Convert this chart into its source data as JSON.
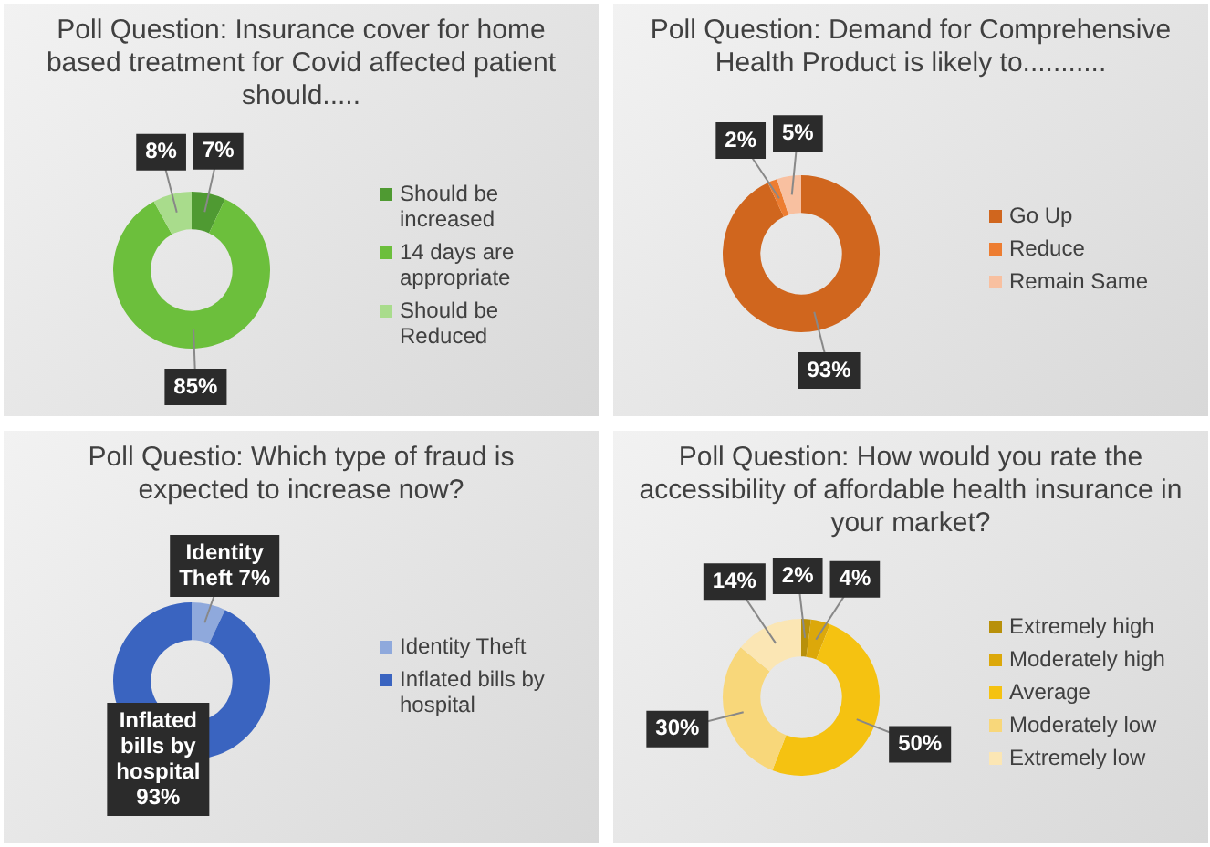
{
  "chart_data": [
    {
      "type": "donut",
      "title": "Poll Question: Insurance cover for home based treatment for Covid affected patient should.....",
      "categories": [
        "Should be increased",
        "14 days are appropriate",
        "Should be Reduced"
      ],
      "values": [
        7,
        85,
        8
      ],
      "colors": [
        "#4f9a32",
        "#6cbf3c",
        "#a9dc8c"
      ],
      "value_labels": [
        "7%",
        "85%",
        "8%"
      ],
      "legend": "right"
    },
    {
      "type": "donut",
      "title": "Poll Question: Demand for Comprehensive Health Product is likely to...........",
      "categories": [
        "Go Up",
        "Reduce",
        "Remain Same"
      ],
      "values": [
        93,
        2,
        5
      ],
      "colors": [
        "#d0661e",
        "#ed7d31",
        "#f8c0a0"
      ],
      "value_labels": [
        "93%",
        "2%",
        "5%"
      ],
      "legend": "right"
    },
    {
      "type": "donut",
      "title": "Poll Questio: Which type of fraud is expected to increase now?",
      "categories": [
        "Identity Theft",
        "Inflated bills by hospital"
      ],
      "values": [
        7,
        93
      ],
      "colors": [
        "#8fa9dc",
        "#3a64c0"
      ],
      "value_labels": [
        "Identity Theft 7%",
        "Inflated bills by hospital 93%"
      ],
      "legend": "right"
    },
    {
      "type": "donut",
      "title": "Poll Question: How would you rate the accessibility of affordable health insurance in your market?",
      "categories": [
        "Extremely high",
        "Moderately high",
        "Average",
        "Moderately low",
        "Extremely low"
      ],
      "values": [
        2,
        4,
        50,
        30,
        14
      ],
      "colors": [
        "#b8900a",
        "#dca80a",
        "#f5c211",
        "#f8d77a",
        "#fbe6b4"
      ],
      "value_labels": [
        "2%",
        "4%",
        "50%",
        "30%",
        "14%"
      ],
      "legend": "right"
    }
  ]
}
